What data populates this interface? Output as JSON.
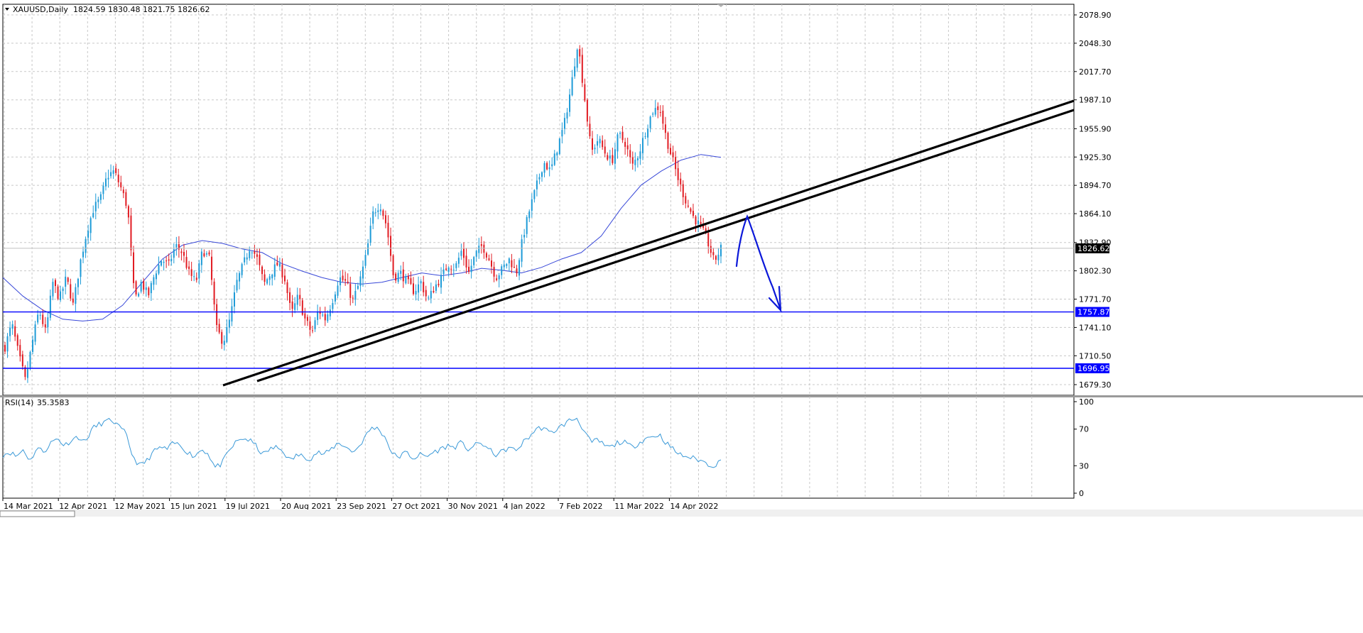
{
  "header": {
    "symbol_label": "XAUUSD,Daily",
    "ohlc_text": "1824.59 1830.48 1821.75 1826.62"
  },
  "rsi_header": {
    "label": "RSI(14)",
    "value": "35.3583"
  },
  "colors": {
    "background": "#ffffff",
    "grid": "#c8c8c8",
    "bull": "#1e9bd7",
    "bear": "#e11b22",
    "ma": "#3848d8",
    "rsi": "#3c9ad8",
    "level": "#0000ff",
    "trend": "#000000",
    "arrow": "#0b18d9",
    "current_price_badge": "#000000"
  },
  "chart_data": [
    {
      "type": "candlestick",
      "title": "XAUUSD,Daily",
      "subtitle": "1824.59 1830.48 1821.75 1826.62",
      "x_tick_labels": [
        "14 Mar 2021",
        "12 Apr 2021",
        "12 May 2021",
        "15 Jun 2021",
        "19 Jul 2021",
        "20 Aug 2021",
        "23 Sep 2021",
        "27 Oct 2021",
        "30 Nov 2021",
        "4 Jan 2022",
        "7 Feb 2022",
        "11 Mar 2022",
        "14 Apr 2022"
      ],
      "y_tick_labels": [
        "2078.90",
        "2048.30",
        "2017.70",
        "1987.10",
        "1955.90",
        "1925.30",
        "1894.70",
        "1864.10",
        "1832.90",
        "1802.30",
        "1771.70",
        "1741.10",
        "1710.50",
        "1679.30"
      ],
      "ylim": [
        1666.0,
        2090.0
      ],
      "grid": true,
      "last_close": 1826.62,
      "last_price_badge": "1826.62",
      "horizontal_levels": [
        {
          "value": 1757.87,
          "label": "1757.87"
        },
        {
          "value": 1696.95,
          "label": "1696.95"
        }
      ],
      "price_path": [
        1720,
        1745,
        1712,
        1683,
        1725,
        1760,
        1735,
        1790,
        1772,
        1795,
        1765,
        1810,
        1845,
        1870,
        1880,
        1905,
        1910,
        1892,
        1870,
        1770,
        1790,
        1775,
        1800,
        1815,
        1808,
        1830,
        1822,
        1800,
        1790,
        1825,
        1815,
        1740,
        1725,
        1750,
        1790,
        1810,
        1830,
        1815,
        1788,
        1800,
        1810,
        1795,
        1755,
        1775,
        1750,
        1735,
        1760,
        1750,
        1770,
        1795,
        1790,
        1770,
        1790,
        1820,
        1865,
        1875,
        1850,
        1795,
        1800,
        1790,
        1780,
        1790,
        1770,
        1785,
        1795,
        1810,
        1805,
        1825,
        1800,
        1820,
        1830,
        1815,
        1795,
        1805,
        1815,
        1800,
        1840,
        1870,
        1895,
        1920,
        1910,
        1935,
        1960,
        2000,
        2050,
        1990,
        1930,
        1945,
        1930,
        1920,
        1950,
        1940,
        1915,
        1930,
        1955,
        1975,
        1980,
        1945,
        1920,
        1895,
        1875,
        1860,
        1850,
        1835,
        1812,
        1826.62
      ],
      "moving_average_path": [
        1795,
        1775,
        1760,
        1750,
        1748,
        1750,
        1765,
        1790,
        1815,
        1830,
        1835,
        1832,
        1826,
        1822,
        1810,
        1802,
        1795,
        1790,
        1788,
        1790,
        1795,
        1800,
        1797,
        1800,
        1805,
        1803,
        1800,
        1806,
        1815,
        1822,
        1840,
        1870,
        1895,
        1910,
        1922,
        1928,
        1925
      ]
    },
    {
      "type": "line",
      "title": "RSI(14)",
      "subtitle": "35.3583",
      "y_tick_labels": [
        "100",
        "70",
        "30",
        "0"
      ],
      "ylim": [
        0,
        100
      ],
      "values": [
        42,
        45,
        40,
        48,
        35,
        50,
        45,
        55,
        60,
        52,
        58,
        62,
        55,
        70,
        75,
        78,
        80,
        72,
        65,
        40,
        30,
        35,
        45,
        50,
        48,
        55,
        52,
        45,
        40,
        48,
        44,
        28,
        32,
        45,
        55,
        60,
        58,
        52,
        42,
        48,
        50,
        46,
        35,
        42,
        40,
        38,
        45,
        42,
        48,
        55,
        52,
        45,
        50,
        62,
        72,
        70,
        60,
        42,
        40,
        45,
        38,
        42,
        40,
        45,
        48,
        52,
        50,
        55,
        48,
        52,
        55,
        48,
        42,
        45,
        50,
        46,
        55,
        62,
        70,
        72,
        65,
        70,
        75,
        80,
        82,
        68,
        55,
        58,
        52,
        50,
        56,
        55,
        50,
        55,
        60,
        62,
        64,
        55,
        48,
        42,
        40,
        38,
        36,
        32,
        30,
        35.36
      ]
    }
  ]
}
